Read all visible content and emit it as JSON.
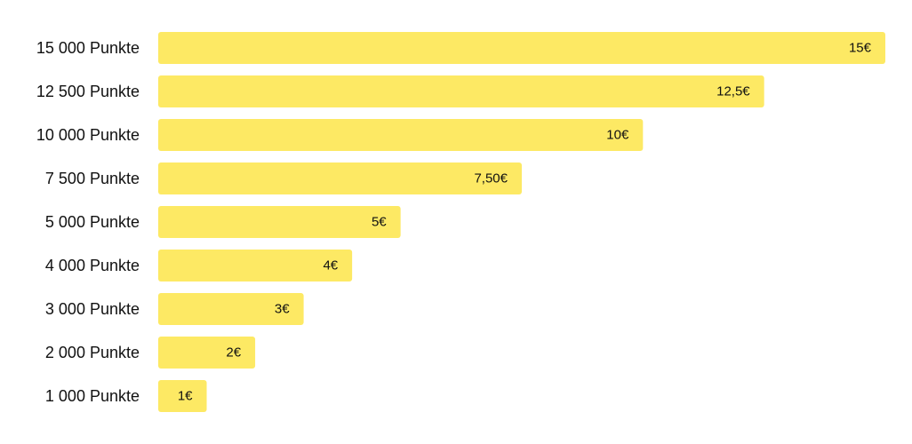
{
  "chart_data": {
    "type": "bar",
    "orientation": "horizontal",
    "categories": [
      "15 000 Punkte",
      "12 500 Punkte",
      "10 000 Punkte",
      "7 500 Punkte",
      "5 000 Punkte",
      "4 000 Punkte",
      "3 000 Punkte",
      "2 000 Punkte",
      "1 000 Punkte"
    ],
    "values": [
      15,
      12.5,
      10,
      7.5,
      5,
      4,
      3,
      2,
      1
    ],
    "value_labels": [
      "15€",
      "12,5€",
      "10€",
      "7,50€",
      "5€",
      "4€",
      "3€",
      "2€",
      "1€"
    ],
    "xlim": [
      0,
      15
    ],
    "grid": false,
    "bar_color": "#FDE964"
  }
}
